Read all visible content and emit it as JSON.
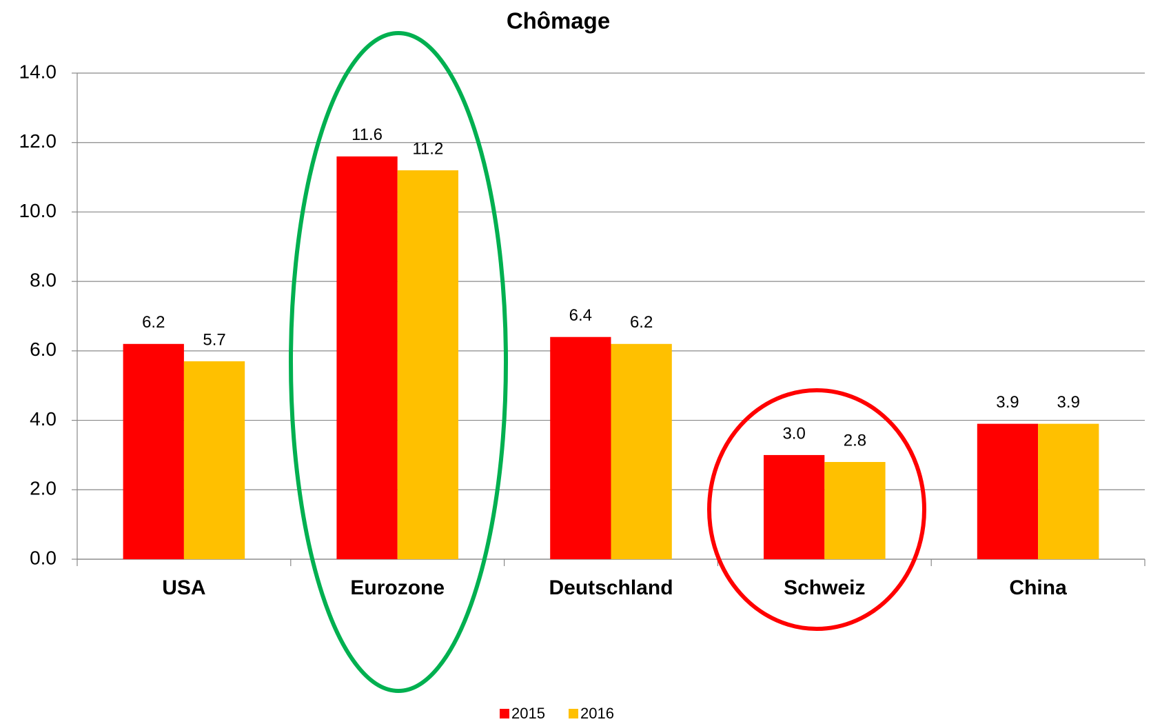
{
  "chart_data": {
    "type": "bar",
    "title": "Chômage",
    "categories": [
      "USA",
      "Eurozone",
      "Deutschland",
      "Schweiz",
      "China"
    ],
    "series": [
      {
        "name": "2015",
        "color": "#ff0000",
        "values": [
          6.2,
          11.6,
          6.4,
          3.0,
          3.9
        ],
        "value_labels": [
          "6.2",
          "11.6",
          "6.4",
          "3.0",
          "3.9"
        ]
      },
      {
        "name": "2016",
        "color": "#ffc000",
        "values": [
          5.7,
          11.2,
          6.2,
          2.8,
          3.9
        ],
        "value_labels": [
          "5.7",
          "11.2",
          "6.2",
          "2.8",
          "3.9"
        ]
      }
    ],
    "ylim": [
      0,
      14
    ],
    "yticks": [
      {
        "value": 0,
        "label": "0.0"
      },
      {
        "value": 2,
        "label": "2.0"
      },
      {
        "value": 4,
        "label": "4.0"
      },
      {
        "value": 6,
        "label": "6.0"
      },
      {
        "value": 8,
        "label": "8.0"
      },
      {
        "value": 10,
        "label": "10.0"
      },
      {
        "value": 12,
        "label": "12.0"
      },
      {
        "value": 14,
        "label": "14.0"
      }
    ],
    "grid": true,
    "legend": "bottom"
  }
}
